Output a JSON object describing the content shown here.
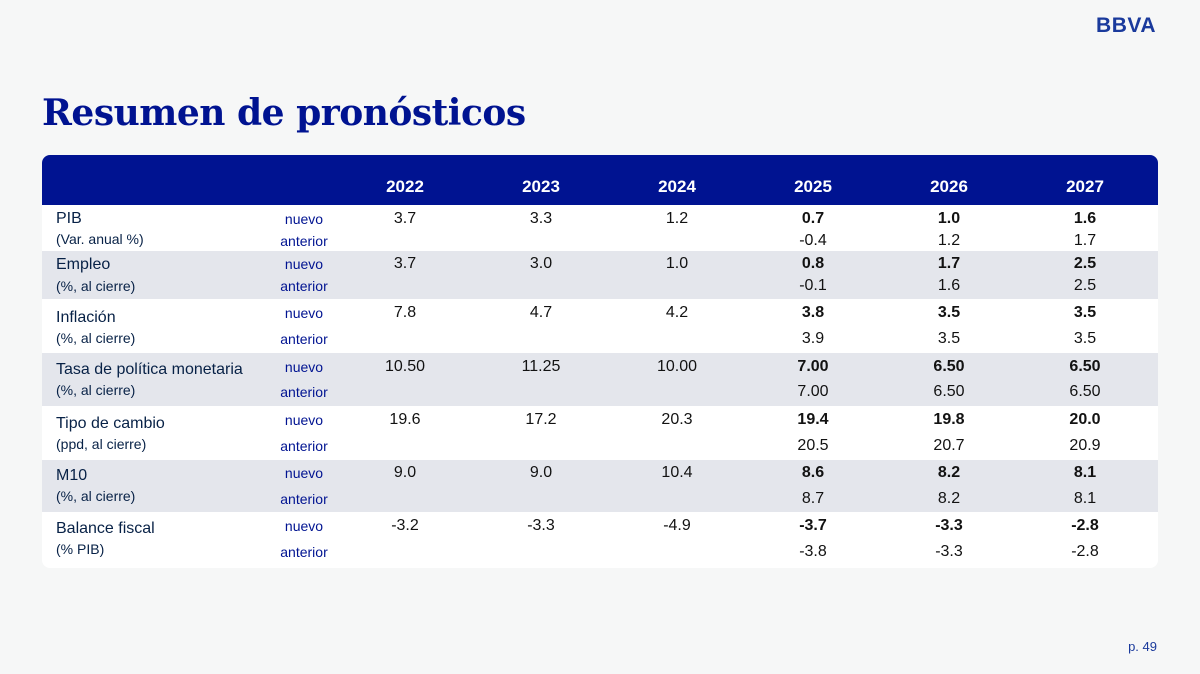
{
  "brand": "BBVA",
  "title": "Resumen de pronósticos",
  "years": [
    "2022",
    "2023",
    "2024",
    "2025",
    "2026",
    "2027"
  ],
  "row_tags": {
    "new": "nuevo",
    "prev": "anterior"
  },
  "indicators": [
    {
      "name": "PIB",
      "sub": "(Var. anual %)",
      "nuevo": [
        "3.7",
        "3.3",
        "1.2",
        "0.7",
        "1.0",
        "1.6"
      ],
      "anterior": [
        "",
        "",
        "",
        "-0.4",
        "1.2",
        "1.7"
      ]
    },
    {
      "name": "Empleo",
      "sub": "(%, al cierre)",
      "nuevo": [
        "3.7",
        "3.0",
        "1.0",
        "0.8",
        "1.7",
        "2.5"
      ],
      "anterior": [
        "",
        "",
        "",
        "-0.1",
        "1.6",
        "2.5"
      ]
    },
    {
      "name": "Inflación",
      "sub": "(%, al cierre)",
      "nuevo": [
        "7.8",
        "4.7",
        "4.2",
        "3.8",
        "3.5",
        "3.5"
      ],
      "anterior": [
        "",
        "",
        "",
        "3.9",
        "3.5",
        "3.5"
      ]
    },
    {
      "name": "Tasa de política monetaria",
      "sub": "(%, al cierre)",
      "nuevo": [
        "10.50",
        "11.25",
        "10.00",
        "7.00",
        "6.50",
        "6.50"
      ],
      "anterior": [
        "",
        "",
        "",
        "7.00",
        "6.50",
        "6.50"
      ]
    },
    {
      "name": "Tipo de cambio",
      "sub": "(ppd, al cierre)",
      "nuevo": [
        "19.6",
        "17.2",
        "20.3",
        "19.4",
        "19.8",
        "20.0"
      ],
      "anterior": [
        "",
        "",
        "",
        "20.5",
        "20.7",
        "20.9"
      ]
    },
    {
      "name": "M10",
      "sub": "(%, al cierre)",
      "nuevo": [
        "9.0",
        "9.0",
        "10.4",
        "8.6",
        "8.2",
        "8.1"
      ],
      "anterior": [
        "",
        "",
        "",
        "8.7",
        "8.2",
        "8.1"
      ]
    },
    {
      "name": "Balance fiscal",
      "sub": "(% PIB)",
      "nuevo": [
        "-3.2",
        "-3.3",
        "-4.9",
        "-3.7",
        "-3.3",
        "-2.8"
      ],
      "anterior": [
        "",
        "",
        "",
        "-3.8",
        "-3.3",
        "-2.8"
      ]
    }
  ],
  "page_label": "p. 49"
}
